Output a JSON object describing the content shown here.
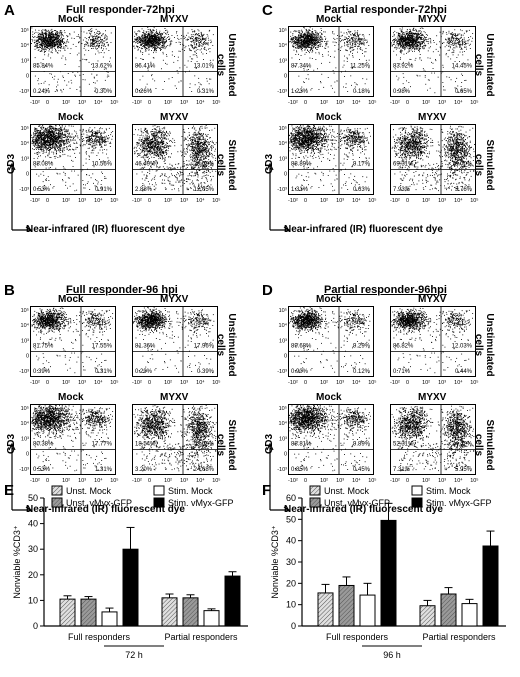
{
  "panels": [
    {
      "letter": "A",
      "title": "Full responder-72hpi",
      "unstim_label": "Unstimulated cells",
      "stim_label": "Stimulated cells",
      "plots": [
        {
          "label": "Mock",
          "q": {
            "ul": "85.84%",
            "ur": "13.62%",
            "ll": "0.24%",
            "lr": "0.30%"
          }
        },
        {
          "label": "MYXV",
          "q": {
            "ul": "86.41%",
            "ur": "13.01%",
            "ll": "0.26%",
            "lr": "0.31%"
          }
        },
        {
          "label": "Mock",
          "q": {
            "ul": "88.08%",
            "ur": "10.56%",
            "ll": "0.53%",
            "lr": "0.91%"
          }
        },
        {
          "label": "MYXV",
          "q": {
            "ul": "46.49%",
            "ur": "38.58%",
            "ll": "2.88%",
            "lr": "12.05%"
          }
        }
      ]
    },
    {
      "letter": "C",
      "title": "Partial responder-72hpi",
      "unstim_label": "Unstimulated cells",
      "stim_label": "Stimulated cells",
      "plots": [
        {
          "label": "Mock",
          "q": {
            "ul": "87.34%",
            "ur": "11.25%",
            "ll": "1.23%",
            "lr": "0.18%"
          }
        },
        {
          "label": "MYXV",
          "q": {
            "ul": "83.92%",
            "ur": "14.45%",
            "ll": "0.98%",
            "lr": "0.65%"
          }
        },
        {
          "label": "Mock",
          "q": {
            "ul": "88.89%",
            "ur": "9.17%",
            "ll": "1.31%",
            "lr": "0.63%"
          }
        },
        {
          "label": "MYXV",
          "q": {
            "ul": "69.31%",
            "ur": "19.00%",
            "ll": "7.93%",
            "lr": "3.76%"
          }
        }
      ]
    },
    {
      "letter": "B",
      "title": "Full responder-96 hpi",
      "unstim_label": "Unstimulated cells",
      "stim_label": "Stimulated cells",
      "plots": [
        {
          "label": "Mock",
          "q": {
            "ul": "81.75%",
            "ur": "17.55%",
            "ll": "0.39%",
            "lr": "0.31%"
          }
        },
        {
          "label": "MYXV",
          "q": {
            "ul": "81.36%",
            "ur": "17.96%",
            "ll": "0.29%",
            "lr": "0.39%"
          }
        },
        {
          "label": "Mock",
          "q": {
            "ul": "80.38%",
            "ur": "17.77%",
            "ll": "0.53%",
            "lr": "1.31%"
          }
        },
        {
          "label": "MYXV",
          "q": {
            "ul": "18.54%",
            "ur": "53.58%",
            "ll": "3.20%",
            "lr": "24.68%"
          }
        }
      ]
    },
    {
      "letter": "D",
      "title": "Partial responder-96hpi",
      "unstim_label": "Unstimulated cells",
      "stim_label": "Stimulated cells",
      "plots": [
        {
          "label": "Mock",
          "q": {
            "ul": "89.68%",
            "ur": "9.29%",
            "ll": "0.90%",
            "lr": "0.12%"
          }
        },
        {
          "label": "MYXV",
          "q": {
            "ul": "86.82%",
            "ur": "12.03%",
            "ll": "0.71%",
            "lr": "0.44%"
          }
        },
        {
          "label": "Mock",
          "q": {
            "ul": "88.81%",
            "ur": "9.89%",
            "ll": "0.85%",
            "lr": "0.45%"
          }
        },
        {
          "label": "MYXV",
          "q": {
            "ul": "52.31%",
            "ur": "34.42%",
            "ll": "7.31%",
            "lr": "5.95%"
          }
        }
      ]
    }
  ],
  "axis": {
    "xlabel": "Near-infrared (IR) fluorescent dye",
    "ylabel": "CD3",
    "xticks": [
      "-10²",
      "0",
      "10²",
      "10³",
      "10⁴",
      "10⁵"
    ],
    "yticks": [
      "10⁵",
      "10⁴",
      "10³",
      "0",
      "-10³"
    ]
  },
  "chart_data": [
    {
      "panel": "E",
      "type": "bar",
      "ylabel": "Nonviable %CD3⁺",
      "ylim": [
        0,
        50
      ],
      "yticks": [
        "0",
        "10",
        "20",
        "30",
        "40",
        "50"
      ],
      "categories": [
        "Full responders",
        "Partial responders"
      ],
      "time_label": "72 h",
      "series": [
        {
          "name": "Unst. Mock",
          "values": [
            10.5,
            11
          ],
          "errors": [
            1.3,
            1.5
          ]
        },
        {
          "name": "Unst. vMyx-GFP",
          "values": [
            10.5,
            11
          ],
          "errors": [
            1,
            1.2
          ]
        },
        {
          "name": "Stim.  Mock",
          "values": [
            5.5,
            6
          ],
          "errors": [
            1.5,
            0.7
          ]
        },
        {
          "name": "Stim.  vMyx-GFP",
          "values": [
            30,
            19.5
          ],
          "errors": [
            8.5,
            1.7
          ]
        }
      ]
    },
    {
      "panel": "F",
      "type": "bar",
      "ylabel": "Nonviable %CD3⁺",
      "ylim": [
        0,
        60
      ],
      "yticks": [
        "0",
        "10",
        "20",
        "30",
        "40",
        "50",
        "60"
      ],
      "categories": [
        "Full responders",
        "Partial responders"
      ],
      "time_label": "96 h",
      "series": [
        {
          "name": "Unst. Mock",
          "values": [
            15.5,
            9.5
          ],
          "errors": [
            4,
            2.5
          ]
        },
        {
          "name": "Unst. vMyx-GFP",
          "values": [
            19,
            15
          ],
          "errors": [
            4,
            3
          ]
        },
        {
          "name": "Stim.  Mock",
          "values": [
            14.5,
            10.5
          ],
          "errors": [
            5.5,
            2
          ]
        },
        {
          "name": "Stim.  vMyx-GFP",
          "values": [
            49.5,
            37.5
          ],
          "errors": [
            8,
            7
          ]
        }
      ]
    }
  ],
  "bar_panel_letters": [
    "E",
    "F"
  ],
  "colors": {
    "unst_mock": "#bdbdbd",
    "unst_vmyx": "#8a8a8a",
    "stim_mock": "#ffffff",
    "stim_vmyx": "#000000"
  }
}
